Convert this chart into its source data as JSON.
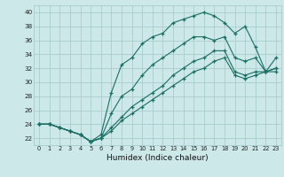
{
  "xlabel": "Humidex (Indice chaleur)",
  "background_color": "#cce8e8",
  "grid_color": "#aacccc",
  "line_color": "#1a6e64",
  "xlim": [
    -0.5,
    23.5
  ],
  "ylim": [
    21.0,
    41.0
  ],
  "xticks": [
    0,
    1,
    2,
    3,
    4,
    5,
    6,
    7,
    8,
    9,
    10,
    11,
    12,
    13,
    14,
    15,
    16,
    17,
    18,
    19,
    20,
    21,
    22,
    23
  ],
  "yticks": [
    22,
    24,
    26,
    28,
    30,
    32,
    34,
    36,
    38,
    40
  ],
  "hours": [
    0,
    1,
    2,
    3,
    4,
    5,
    6,
    7,
    8,
    9,
    10,
    11,
    12,
    13,
    14,
    15,
    16,
    17,
    18,
    19,
    20,
    21,
    22,
    23
  ],
  "line_top": [
    24.0,
    24.0,
    23.5,
    23.0,
    22.5,
    21.5,
    22.5,
    28.5,
    32.5,
    33.5,
    35.5,
    36.5,
    37.0,
    38.5,
    39.0,
    39.5,
    40.0,
    39.5,
    38.5,
    37.0,
    38.0,
    35.0,
    31.5,
    31.5
  ],
  "line_mid": [
    24.0,
    24.0,
    23.5,
    23.0,
    22.5,
    21.5,
    22.0,
    25.5,
    28.0,
    29.0,
    31.0,
    32.5,
    33.5,
    34.5,
    35.5,
    36.5,
    36.5,
    36.0,
    36.5,
    33.5,
    33.0,
    33.5,
    31.5,
    33.5
  ],
  "line_low1": [
    24.0,
    24.0,
    23.5,
    23.0,
    22.5,
    21.5,
    22.0,
    23.5,
    25.0,
    26.5,
    27.5,
    28.5,
    29.5,
    31.0,
    32.0,
    33.0,
    33.5,
    34.5,
    34.5,
    31.5,
    31.0,
    31.5,
    31.5,
    32.0
  ],
  "line_low2": [
    24.0,
    24.0,
    23.5,
    23.0,
    22.5,
    21.5,
    22.0,
    23.0,
    24.5,
    25.5,
    26.5,
    27.5,
    28.5,
    29.5,
    30.5,
    31.5,
    32.0,
    33.0,
    33.5,
    31.0,
    30.5,
    31.0,
    31.5,
    32.0
  ]
}
